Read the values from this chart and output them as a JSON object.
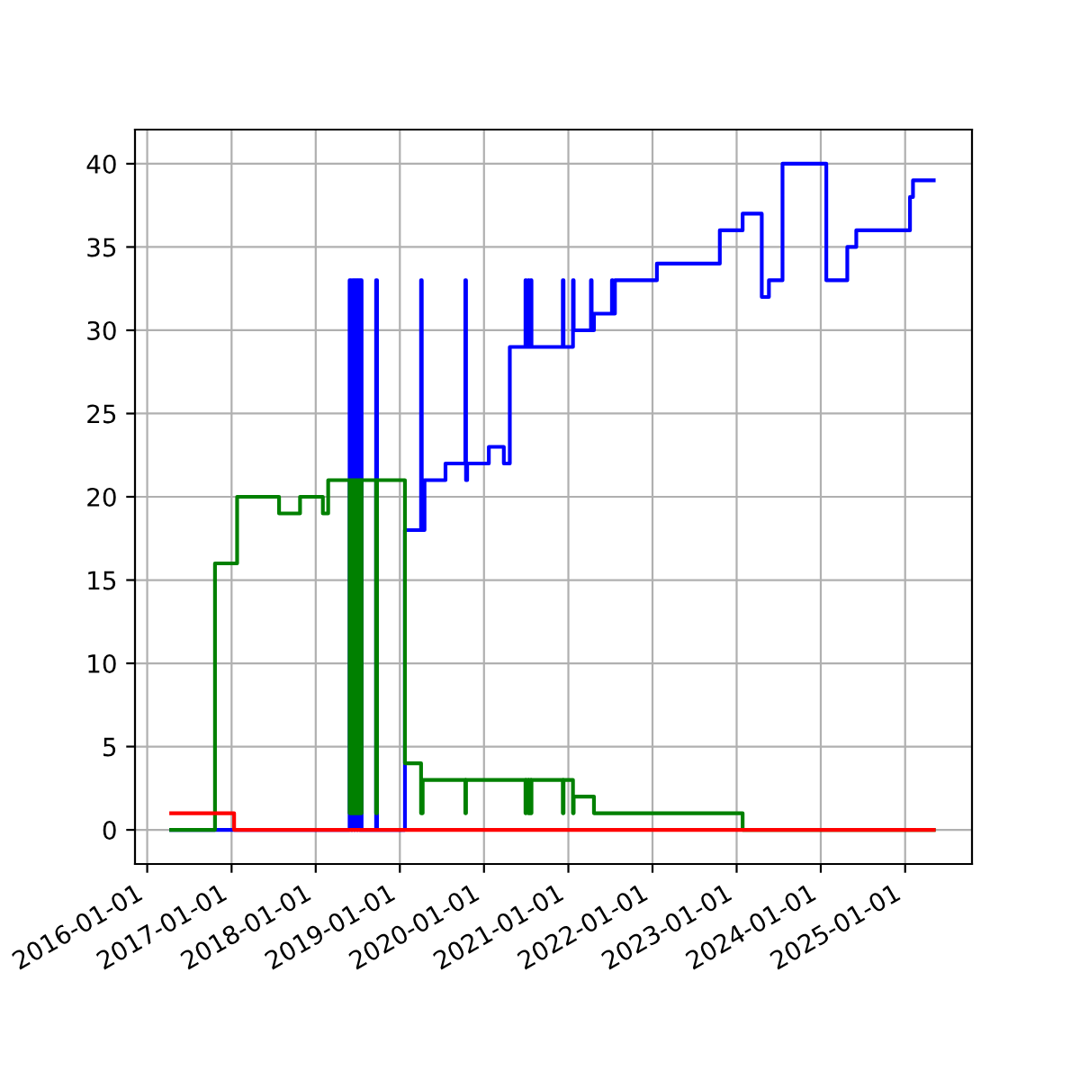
{
  "chart_data": {
    "type": "step",
    "xlim": [
      "2015-11-09",
      "2025-10-18"
    ],
    "xticks": [
      "2016-01-01",
      "2017-01-01",
      "2018-01-01",
      "2019-01-01",
      "2020-01-01",
      "2021-01-01",
      "2022-01-01",
      "2023-01-01",
      "2024-01-01",
      "2025-01-01"
    ],
    "ylim": [
      -2.05,
      42.05
    ],
    "yticks": [
      0,
      5,
      10,
      15,
      20,
      25,
      30,
      35,
      40
    ],
    "grid": true,
    "series": [
      {
        "color": "#0000ff",
        "x": [
          "2016-04-14",
          "2018-05-28",
          "2018-06-03",
          "2018-06-10",
          "2018-06-16",
          "2018-06-22",
          "2018-06-28",
          "2018-07-04",
          "2018-07-10",
          "2018-07-16",
          "2018-07-19",
          "2018-09-20",
          "2018-09-24",
          "2019-01-23",
          "2019-04-03",
          "2019-04-06",
          "2019-04-18",
          "2019-07-18",
          "2019-10-12",
          "2019-10-15",
          "2019-10-20",
          "2020-01-22",
          "2020-03-27",
          "2020-04-22",
          "2020-06-29",
          "2020-07-02",
          "2020-07-11",
          "2020-07-14",
          "2020-07-22",
          "2020-07-25",
          "2020-12-08",
          "2020-12-11",
          "2021-01-21",
          "2021-01-24",
          "2021-04-09",
          "2021-04-12",
          "2021-04-22",
          "2021-07-09",
          "2021-07-12",
          "2021-07-22",
          "2022-01-20",
          "2022-10-20",
          "2023-01-27",
          "2023-04-20",
          "2023-05-21",
          "2023-07-19",
          "2024-01-25",
          "2024-04-25",
          "2024-06-03",
          "2025-01-22",
          "2025-02-04",
          "2025-05-05"
        ],
        "values": [
          0,
          33,
          0,
          33,
          0,
          33,
          0,
          33,
          0,
          33,
          0,
          33,
          0,
          18,
          33,
          18,
          21,
          22,
          33,
          21,
          22,
          23,
          22,
          29,
          33,
          29,
          33,
          29,
          33,
          29,
          33,
          29,
          33,
          30,
          33,
          30,
          31,
          33,
          31,
          33,
          34,
          36,
          37,
          32,
          33,
          40,
          33,
          35,
          36,
          38,
          39,
          39
        ]
      },
      {
        "color": "#008000",
        "x": [
          "2016-04-14",
          "2016-10-21",
          "2017-01-25",
          "2017-07-26",
          "2017-10-25",
          "2018-02-01",
          "2018-02-24",
          "2018-05-28",
          "2018-06-03",
          "2018-06-10",
          "2018-06-16",
          "2018-06-22",
          "2018-06-28",
          "2018-07-04",
          "2018-07-10",
          "2018-07-16",
          "2018-07-19",
          "2018-09-20",
          "2018-09-24",
          "2019-01-23",
          "2019-04-03",
          "2019-04-10",
          "2019-10-12",
          "2019-10-15",
          "2020-06-29",
          "2020-07-02",
          "2020-07-11",
          "2020-07-14",
          "2020-07-22",
          "2020-07-25",
          "2020-12-08",
          "2020-12-11",
          "2021-01-21",
          "2021-01-24",
          "2021-04-22",
          "2023-01-27",
          "2025-05-05"
        ],
        "values": [
          0,
          16,
          20,
          19,
          20,
          19,
          21,
          1,
          21,
          1,
          21,
          1,
          21,
          1,
          21,
          1,
          21,
          1,
          21,
          4,
          1,
          3,
          1,
          3,
          1,
          3,
          1,
          3,
          1,
          3,
          1,
          3,
          1,
          2,
          1,
          0,
          0
        ]
      },
      {
        "color": "#ff0000",
        "x": [
          "2016-04-14",
          "2017-01-12",
          "2025-05-05"
        ],
        "values": [
          1,
          0,
          0
        ]
      }
    ]
  }
}
